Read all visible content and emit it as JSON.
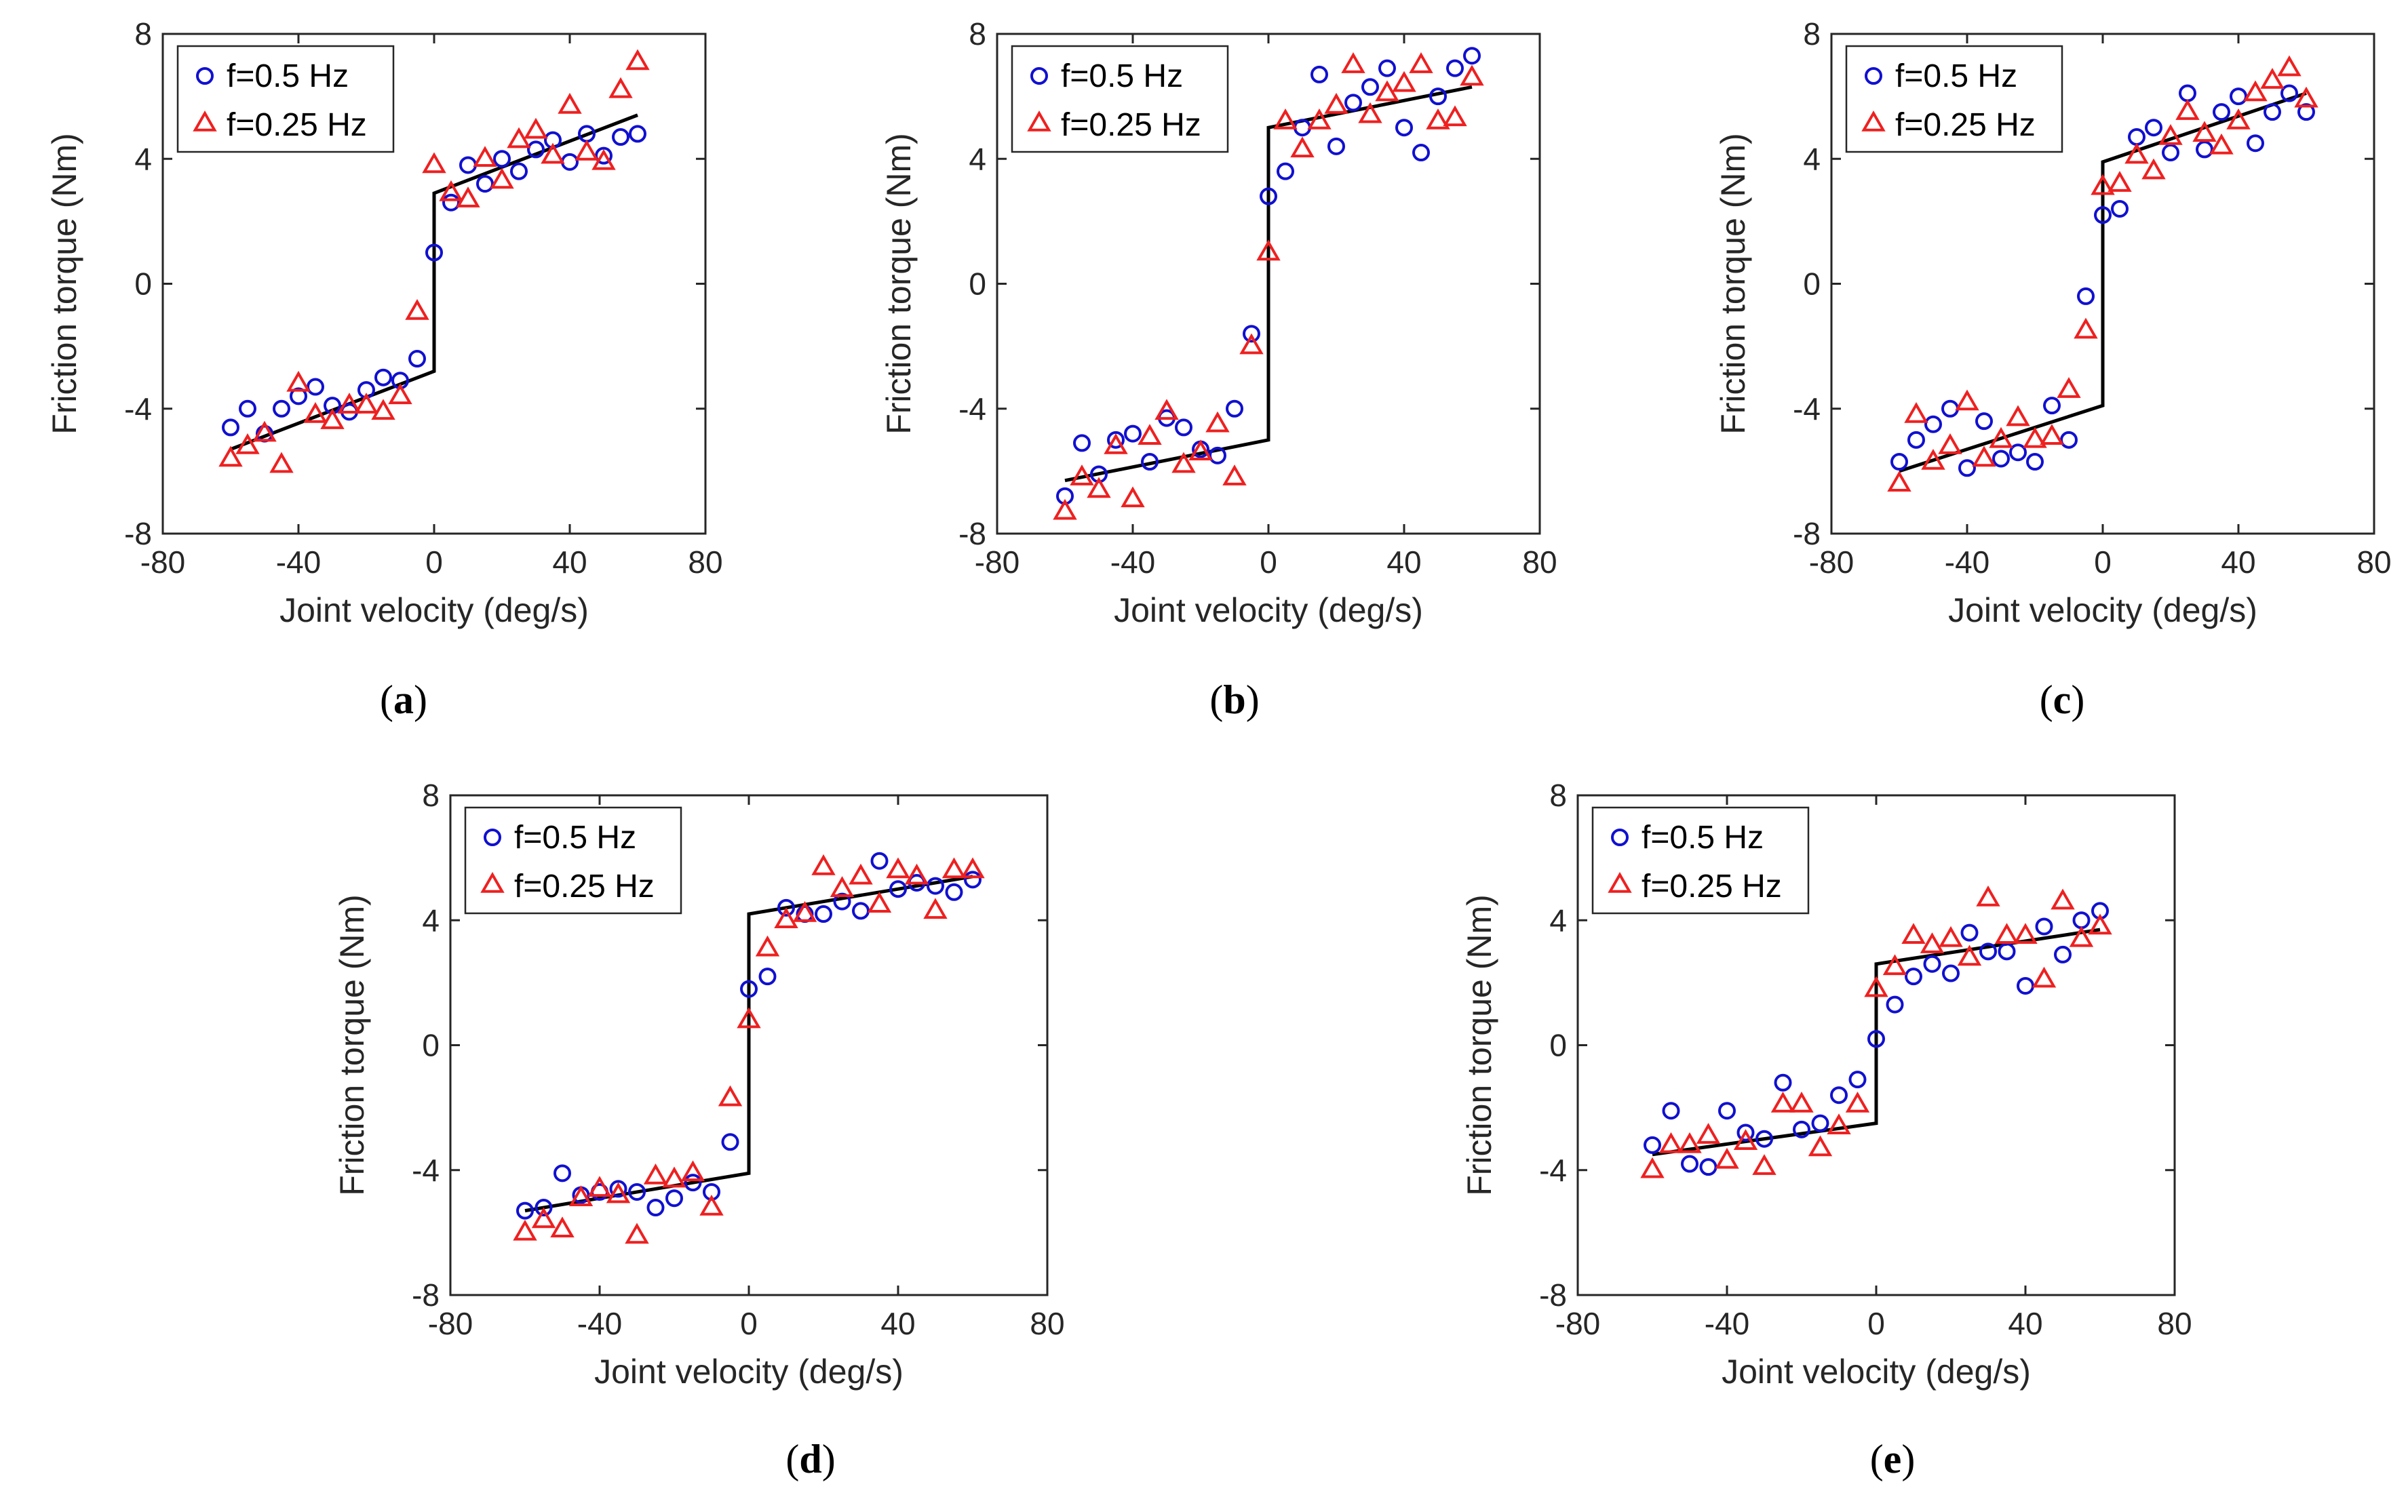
{
  "figure": {
    "panels": [
      {
        "label_open": "(",
        "label_letter": "a",
        "label_close": ")",
        "legend": [
          "f=0.5 Hz",
          "f=0.25 Hz"
        ],
        "xlabel": "Joint velocity (deg/s)",
        "ylabel": "Friction torque (Nm)"
      },
      {
        "label_open": "(",
        "label_letter": "b",
        "label_close": ")",
        "legend": [
          "f=0.5 Hz",
          "f=0.25 Hz"
        ],
        "xlabel": "Joint velocity (deg/s)",
        "ylabel": "Friction torque (Nm)"
      },
      {
        "label_open": "(",
        "label_letter": "c",
        "label_close": ")",
        "legend": [
          "f=0.5 Hz",
          "f=0.25 Hz"
        ],
        "xlabel": "Joint velocity (deg/s)",
        "ylabel": "Friction torque (Nm)"
      },
      {
        "label_open": "(",
        "label_letter": "d",
        "label_close": ")",
        "legend": [
          "f=0.5 Hz",
          "f=0.25 Hz"
        ],
        "xlabel": "Joint velocity (deg/s)",
        "ylabel": "Friction torque (Nm)"
      },
      {
        "label_open": "(",
        "label_letter": "e",
        "label_close": ")",
        "legend": [
          "f=0.5 Hz",
          "f=0.25 Hz"
        ],
        "xlabel": "Joint velocity (deg/s)",
        "ylabel": "Friction torque (Nm)"
      }
    ]
  },
  "colors": {
    "series_05": "#1010d0",
    "series_025": "#ee2020",
    "fit": "#000000",
    "axes": "#262626"
  },
  "chart_data": [
    {
      "type": "scatter",
      "title": "",
      "xlabel": "Joint velocity (deg/s)",
      "ylabel": "Friction torque (Nm)",
      "xlim": [
        -80,
        80
      ],
      "ylim": [
        -8,
        8
      ],
      "xticks": [
        -80,
        -40,
        0,
        40,
        80
      ],
      "yticks": [
        -8,
        -4,
        0,
        4,
        8
      ],
      "legend_position": "top-left",
      "series": [
        {
          "name": "f=0.5 Hz",
          "marker": "circle",
          "x": [
            -60,
            -55,
            -50,
            -45,
            -40,
            -35,
            -30,
            -25,
            -20,
            -15,
            -10,
            -5,
            0,
            5,
            10,
            15,
            20,
            25,
            30,
            35,
            40,
            45,
            50,
            55,
            60
          ],
          "y": [
            -4.6,
            -4.0,
            -4.8,
            -4.0,
            -3.6,
            -3.3,
            -3.9,
            -4.1,
            -3.4,
            -3.0,
            -3.1,
            -2.4,
            1.0,
            2.6,
            3.8,
            3.2,
            4.0,
            3.6,
            4.3,
            4.6,
            3.9,
            4.8,
            4.1,
            4.7,
            4.8
          ]
        },
        {
          "name": "f=0.25 Hz",
          "marker": "triangle",
          "x": [
            -60,
            -55,
            -50,
            -45,
            -40,
            -35,
            -30,
            -25,
            -20,
            -15,
            -10,
            -5,
            0,
            5,
            10,
            15,
            20,
            25,
            30,
            35,
            40,
            45,
            50,
            55,
            60
          ],
          "y": [
            -5.6,
            -5.2,
            -4.8,
            -5.8,
            -3.2,
            -4.2,
            -4.4,
            -3.9,
            -3.9,
            -4.1,
            -3.6,
            -0.9,
            3.8,
            2.9,
            2.7,
            4.0,
            3.3,
            4.6,
            4.9,
            4.1,
            5.7,
            4.2,
            3.9,
            6.2,
            7.1
          ]
        },
        {
          "name": "",
          "type": "line",
          "x": [
            -60,
            0,
            0,
            60
          ],
          "y": [
            -5.3,
            -2.8,
            2.9,
            5.4
          ]
        }
      ]
    },
    {
      "type": "scatter",
      "title": "",
      "xlabel": "Joint velocity (deg/s)",
      "ylabel": "Friction torque (Nm)",
      "xlim": [
        -80,
        80
      ],
      "ylim": [
        -8,
        8
      ],
      "xticks": [
        -80,
        -40,
        0,
        40,
        80
      ],
      "yticks": [
        -8,
        -4,
        0,
        4,
        8
      ],
      "legend_position": "top-left",
      "series": [
        {
          "name": "f=0.5 Hz",
          "marker": "circle",
          "x": [
            -60,
            -55,
            -50,
            -45,
            -40,
            -35,
            -30,
            -25,
            -20,
            -15,
            -10,
            -5,
            0,
            5,
            10,
            15,
            20,
            25,
            30,
            35,
            40,
            45,
            50,
            55,
            60
          ],
          "y": [
            -6.8,
            -5.1,
            -6.1,
            -5.0,
            -4.8,
            -5.7,
            -4.3,
            -4.6,
            -5.3,
            -5.5,
            -4.0,
            -1.6,
            2.8,
            3.6,
            5.0,
            6.7,
            4.4,
            5.8,
            6.3,
            6.9,
            5.0,
            4.2,
            6.0,
            6.9,
            7.3
          ]
        },
        {
          "name": "f=0.25 Hz",
          "marker": "triangle",
          "x": [
            -60,
            -55,
            -50,
            -45,
            -40,
            -35,
            -30,
            -25,
            -20,
            -15,
            -10,
            -5,
            0,
            5,
            10,
            15,
            20,
            25,
            30,
            35,
            40,
            45,
            50,
            55,
            60
          ],
          "y": [
            -7.3,
            -6.2,
            -6.6,
            -5.2,
            -6.9,
            -4.9,
            -4.1,
            -5.8,
            -5.4,
            -4.5,
            -6.2,
            -2.0,
            1.0,
            5.2,
            4.3,
            5.2,
            5.7,
            7.0,
            5.4,
            6.1,
            6.4,
            7.0,
            5.2,
            5.3,
            6.6
          ]
        },
        {
          "name": "",
          "type": "line",
          "x": [
            -60,
            0,
            0,
            60
          ],
          "y": [
            -6.3,
            -5.0,
            5.0,
            6.3
          ]
        }
      ]
    },
    {
      "type": "scatter",
      "title": "",
      "xlabel": "Joint velocity (deg/s)",
      "ylabel": "Friction torque (Nm)",
      "xlim": [
        -80,
        80
      ],
      "ylim": [
        -8,
        8
      ],
      "xticks": [
        -80,
        -40,
        0,
        40,
        80
      ],
      "yticks": [
        -8,
        -4,
        0,
        4,
        8
      ],
      "legend_position": "top-left",
      "series": [
        {
          "name": "f=0.5 Hz",
          "marker": "circle",
          "x": [
            -60,
            -55,
            -50,
            -45,
            -40,
            -35,
            -30,
            -25,
            -20,
            -15,
            -10,
            -5,
            0,
            5,
            10,
            15,
            20,
            25,
            30,
            35,
            40,
            45,
            50,
            55,
            60
          ],
          "y": [
            -5.7,
            -5.0,
            -4.5,
            -4.0,
            -5.9,
            -4.4,
            -5.6,
            -5.4,
            -5.7,
            -3.9,
            -5.0,
            -0.4,
            2.2,
            2.4,
            4.7,
            5.0,
            4.2,
            6.1,
            4.3,
            5.5,
            6.0,
            4.5,
            5.5,
            6.1,
            5.5
          ]
        },
        {
          "name": "f=0.25 Hz",
          "marker": "triangle",
          "x": [
            -60,
            -55,
            -50,
            -45,
            -40,
            -35,
            -30,
            -25,
            -20,
            -15,
            -10,
            -5,
            0,
            5,
            10,
            15,
            20,
            25,
            30,
            35,
            40,
            45,
            50,
            55,
            60
          ],
          "y": [
            -6.4,
            -4.2,
            -5.7,
            -5.2,
            -3.8,
            -5.6,
            -5.0,
            -4.3,
            -5.0,
            -4.9,
            -3.4,
            -1.5,
            3.1,
            3.2,
            4.1,
            3.6,
            4.7,
            5.5,
            4.8,
            4.4,
            5.2,
            6.1,
            6.5,
            6.9,
            5.9
          ]
        },
        {
          "name": "",
          "type": "line",
          "x": [
            -60,
            0,
            0,
            60
          ],
          "y": [
            -6.0,
            -3.9,
            3.9,
            6.1
          ]
        }
      ]
    },
    {
      "type": "scatter",
      "title": "",
      "xlabel": "Joint velocity (deg/s)",
      "ylabel": "Friction torque (Nm)",
      "xlim": [
        -80,
        80
      ],
      "ylim": [
        -8,
        8
      ],
      "xticks": [
        -80,
        -40,
        0,
        40,
        80
      ],
      "yticks": [
        -8,
        -4,
        0,
        4,
        8
      ],
      "legend_position": "top-left",
      "series": [
        {
          "name": "f=0.5 Hz",
          "marker": "circle",
          "x": [
            -60,
            -55,
            -50,
            -45,
            -40,
            -35,
            -30,
            -25,
            -20,
            -15,
            -10,
            -5,
            0,
            5,
            10,
            15,
            20,
            25,
            30,
            35,
            40,
            45,
            50,
            55,
            60
          ],
          "y": [
            -5.3,
            -5.2,
            -4.1,
            -4.8,
            -4.7,
            -4.6,
            -4.7,
            -5.2,
            -4.9,
            -4.4,
            -4.7,
            -3.1,
            1.8,
            2.2,
            4.4,
            4.2,
            4.2,
            4.6,
            4.3,
            5.9,
            5.0,
            5.2,
            5.1,
            4.9,
            5.3
          ]
        },
        {
          "name": "f=0.25 Hz",
          "marker": "triangle",
          "x": [
            -60,
            -55,
            -50,
            -45,
            -40,
            -35,
            -30,
            -25,
            -20,
            -15,
            -10,
            -5,
            0,
            5,
            10,
            15,
            20,
            25,
            30,
            35,
            40,
            45,
            50,
            55,
            60
          ],
          "y": [
            -6.0,
            -5.6,
            -5.9,
            -4.9,
            -4.6,
            -4.8,
            -6.1,
            -4.2,
            -4.3,
            -4.1,
            -5.2,
            -1.7,
            0.8,
            3.1,
            4.0,
            4.2,
            5.7,
            5.0,
            5.4,
            4.5,
            5.6,
            5.4,
            4.3,
            5.6,
            5.6
          ]
        },
        {
          "name": "",
          "type": "line",
          "x": [
            -60,
            0,
            0,
            60
          ],
          "y": [
            -5.3,
            -4.1,
            4.2,
            5.4
          ]
        }
      ]
    },
    {
      "type": "scatter",
      "title": "",
      "xlabel": "Joint velocity (deg/s)",
      "ylabel": "Friction torque (Nm)",
      "xlim": [
        -80,
        80
      ],
      "ylim": [
        -8,
        8
      ],
      "xticks": [
        -80,
        -40,
        0,
        40,
        80
      ],
      "yticks": [
        -8,
        -4,
        0,
        4,
        8
      ],
      "legend_position": "top-left",
      "series": [
        {
          "name": "f=0.5 Hz",
          "marker": "circle",
          "x": [
            -60,
            -55,
            -50,
            -45,
            -40,
            -35,
            -30,
            -25,
            -20,
            -15,
            -10,
            -5,
            0,
            5,
            10,
            15,
            20,
            25,
            30,
            35,
            40,
            45,
            50,
            55,
            60
          ],
          "y": [
            -3.2,
            -2.1,
            -3.8,
            -3.9,
            -2.1,
            -2.8,
            -3.0,
            -1.2,
            -2.7,
            -2.5,
            -1.6,
            -1.1,
            0.2,
            1.3,
            2.2,
            2.6,
            2.3,
            3.6,
            3.0,
            3.0,
            1.9,
            3.8,
            2.9,
            4.0,
            4.3
          ]
        },
        {
          "name": "f=0.25 Hz",
          "marker": "triangle",
          "x": [
            -60,
            -55,
            -50,
            -45,
            -40,
            -35,
            -30,
            -25,
            -20,
            -15,
            -10,
            -5,
            0,
            5,
            10,
            15,
            20,
            25,
            30,
            35,
            40,
            45,
            50,
            55,
            60
          ],
          "y": [
            -4.0,
            -3.2,
            -3.2,
            -2.9,
            -3.7,
            -3.1,
            -3.9,
            -1.9,
            -1.9,
            -3.3,
            -2.6,
            -1.9,
            1.8,
            2.5,
            3.5,
            3.2,
            3.4,
            2.8,
            4.7,
            3.5,
            3.5,
            2.1,
            4.6,
            3.4,
            3.8
          ]
        },
        {
          "name": "",
          "type": "line",
          "x": [
            -60,
            0,
            0,
            60
          ],
          "y": [
            -3.5,
            -2.5,
            2.6,
            3.7
          ]
        }
      ]
    }
  ]
}
